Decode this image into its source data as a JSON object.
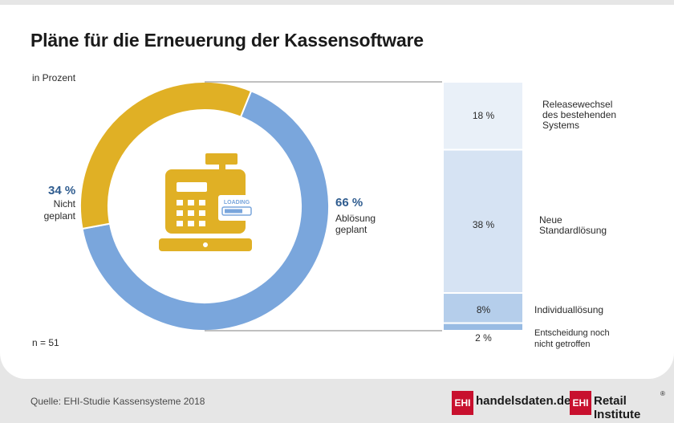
{
  "title": "Pläne für die Erneuerung der Kassensoftware",
  "unit_label": "in Prozent",
  "sample_size": "n = 51",
  "source": "Quelle: EHI-Studie Kassensysteme 2018",
  "donut": {
    "planned": {
      "value": "66 %",
      "label_line1": "Ablösung",
      "label_line2": "geplant"
    },
    "not_planned": {
      "value": "34 %",
      "label_line1": "Nicht",
      "label_line2": "geplant"
    },
    "icon_badge": "LOADING"
  },
  "breakdown": {
    "segments": [
      {
        "value": "18 %",
        "label": [
          "Releasewechsel",
          "des bestehenden",
          "Systems"
        ]
      },
      {
        "value": "38 %",
        "label": [
          "Neue",
          "Standardlösung"
        ]
      },
      {
        "value": "8%",
        "label": [
          "Individuallösung"
        ]
      },
      {
        "value": "2 %",
        "label": [
          "Entscheidung noch",
          "nicht getroffen"
        ]
      }
    ]
  },
  "logos": {
    "ehi_mark": "EHI",
    "handelsdaten": "handelsdaten.de",
    "retail_institute": "Retail Institute",
    "registered": "®"
  },
  "colors": {
    "planned": "#7aa6dc",
    "not_planned": "#e0b025",
    "bar_1": "#e9f0f8",
    "bar_2": "#d6e3f3",
    "bar_3": "#b5ceeb",
    "bar_4": "#98bbe3",
    "icon": "#e0b025"
  },
  "chart_data": [
    {
      "type": "pie",
      "categories": [
        "Ablösung geplant",
        "Nicht geplant"
      ],
      "values": [
        66,
        34
      ]
    },
    {
      "type": "bar",
      "categories": [
        "Releasewechsel des bestehenden Systems",
        "Neue Standardlösung",
        "Individuallösung",
        "Entscheidung noch nicht getroffen"
      ],
      "values": [
        18,
        38,
        8,
        2
      ]
    }
  ]
}
